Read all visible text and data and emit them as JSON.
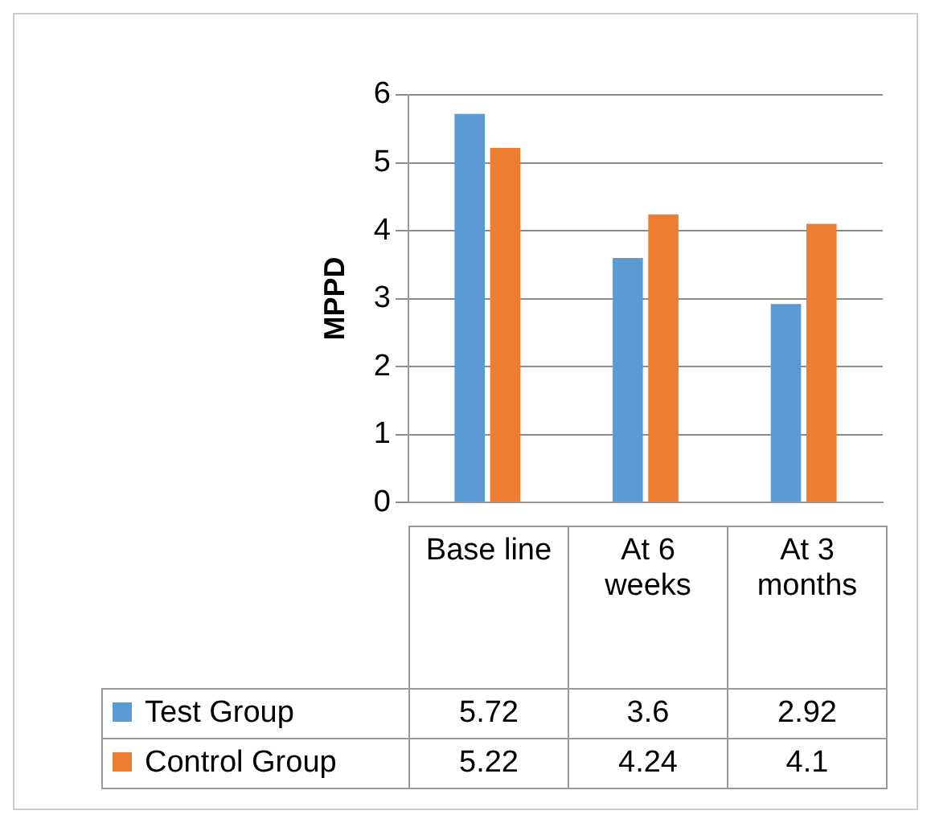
{
  "chart_data": {
    "type": "bar",
    "ylabel": "MPPD",
    "categories": [
      "Base line",
      "At 6 weeks",
      "At 3 months"
    ],
    "series": [
      {
        "name": "Test Group",
        "color": "#5b9bd5",
        "values": [
          5.72,
          3.6,
          2.92
        ]
      },
      {
        "name": "Control Group",
        "color": "#ed7d31",
        "values": [
          5.22,
          4.24,
          4.1
        ]
      }
    ],
    "ylim": [
      0,
      6
    ],
    "yticks": [
      0,
      1,
      2,
      3,
      4,
      5,
      6
    ],
    "grid": "y",
    "legend": "bottom",
    "data_labels": true
  }
}
